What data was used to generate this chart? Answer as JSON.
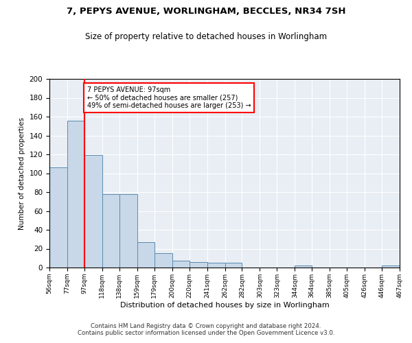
{
  "title1": "7, PEPYS AVENUE, WORLINGHAM, BECCLES, NR34 7SH",
  "title2": "Size of property relative to detached houses in Worlingham",
  "xlabel": "Distribution of detached houses by size in Worlingham",
  "ylabel": "Number of detached properties",
  "bar_color": "#c8d8e8",
  "bar_edge_color": "#5a8ab0",
  "redline_x": 97,
  "bins": [
    56,
    77,
    97,
    118,
    138,
    159,
    179,
    200,
    220,
    241,
    262,
    282,
    303,
    323,
    344,
    364,
    385,
    405,
    426,
    446,
    467
  ],
  "values": [
    106,
    156,
    119,
    78,
    78,
    27,
    15,
    7,
    6,
    5,
    5,
    0,
    0,
    0,
    2,
    0,
    0,
    0,
    0,
    2
  ],
  "tick_labels": [
    "56sqm",
    "77sqm",
    "97sqm",
    "118sqm",
    "138sqm",
    "159sqm",
    "179sqm",
    "200sqm",
    "220sqm",
    "241sqm",
    "262sqm",
    "282sqm",
    "303sqm",
    "323sqm",
    "344sqm",
    "364sqm",
    "385sqm",
    "405sqm",
    "426sqm",
    "446sqm",
    "467sqm"
  ],
  "annotation_text": "7 PEPYS AVENUE: 97sqm\n← 50% of detached houses are smaller (257)\n49% of semi-detached houses are larger (253) →",
  "footer": "Contains HM Land Registry data © Crown copyright and database right 2024.\nContains public sector information licensed under the Open Government Licence v3.0.",
  "ylim": [
    0,
    200
  ],
  "yticks": [
    0,
    20,
    40,
    60,
    80,
    100,
    120,
    140,
    160,
    180,
    200
  ],
  "background_color": "#e8eef4"
}
